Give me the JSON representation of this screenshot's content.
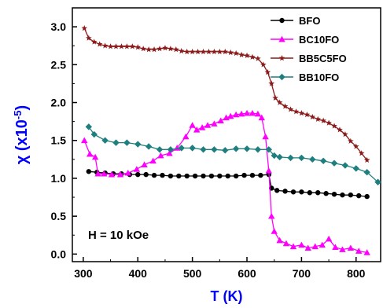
{
  "chart_data": {
    "type": "line",
    "xlabel": "T (K)",
    "ylabel_prefix": "χ (x10",
    "ylabel_exp": "-5",
    "ylabel_suffix": ")",
    "xlim": [
      280,
      845
    ],
    "ylim": [
      -0.1,
      3.25
    ],
    "xticks": [
      300,
      400,
      500,
      600,
      700,
      800
    ],
    "yticks": [
      0.0,
      0.5,
      1.0,
      1.5,
      2.0,
      2.5,
      3.0
    ],
    "xtick_labels": [
      "300",
      "400",
      "500",
      "600",
      "700",
      "800"
    ],
    "ytick_labels": [
      "0.0",
      "0.5",
      "1.0",
      "1.5",
      "2.0",
      "2.5",
      "3.0"
    ],
    "annotation": "H = 10 kOe",
    "legend_position": "top-right",
    "series": [
      {
        "name": "BFO",
        "color": "#000000",
        "marker": "circle",
        "x": [
          310,
          325,
          340,
          355,
          370,
          385,
          400,
          415,
          430,
          445,
          460,
          475,
          490,
          505,
          520,
          535,
          550,
          565,
          580,
          595,
          610,
          625,
          640,
          645,
          655,
          670,
          685,
          700,
          715,
          730,
          745,
          760,
          775,
          790,
          805,
          820
        ],
        "y": [
          1.09,
          1.08,
          1.07,
          1.06,
          1.06,
          1.05,
          1.05,
          1.05,
          1.04,
          1.04,
          1.03,
          1.03,
          1.03,
          1.03,
          1.03,
          1.03,
          1.03,
          1.03,
          1.03,
          1.04,
          1.04,
          1.04,
          1.05,
          0.87,
          0.84,
          0.83,
          0.82,
          0.82,
          0.81,
          0.81,
          0.8,
          0.79,
          0.78,
          0.78,
          0.77,
          0.76
        ]
      },
      {
        "name": "BC10FO",
        "color": "#ff00ff",
        "marker": "triangle",
        "x": [
          302,
          312,
          322,
          327,
          338,
          352,
          368,
          382,
          398,
          412,
          428,
          442,
          458,
          472,
          488,
          500,
          508,
          518,
          528,
          540,
          552,
          562,
          570,
          580,
          590,
          600,
          610,
          620,
          627,
          634,
          640,
          645,
          650,
          660,
          672,
          685,
          700,
          712,
          725,
          738,
          750,
          762,
          775,
          790,
          805,
          820
        ],
        "y": [
          1.5,
          1.32,
          1.28,
          1.06,
          1.06,
          1.05,
          1.05,
          1.07,
          1.12,
          1.18,
          1.23,
          1.3,
          1.33,
          1.4,
          1.55,
          1.7,
          1.64,
          1.67,
          1.7,
          1.72,
          1.76,
          1.8,
          1.82,
          1.84,
          1.85,
          1.86,
          1.86,
          1.85,
          1.8,
          1.55,
          1.1,
          0.5,
          0.3,
          0.18,
          0.14,
          0.1,
          0.12,
          0.08,
          0.1,
          0.12,
          0.2,
          0.09,
          0.06,
          0.08,
          0.04,
          0.02
        ]
      },
      {
        "name": "BB5C5FO",
        "color": "#8b1a1a",
        "marker": "star",
        "x": [
          302,
          310,
          320,
          330,
          340,
          350,
          360,
          370,
          380,
          390,
          400,
          410,
          420,
          430,
          440,
          450,
          460,
          470,
          480,
          490,
          500,
          510,
          520,
          530,
          540,
          550,
          560,
          570,
          580,
          590,
          600,
          610,
          620,
          630,
          638,
          645,
          652,
          660,
          670,
          680,
          690,
          700,
          710,
          720,
          730,
          740,
          750,
          760,
          770,
          780,
          790,
          800,
          810,
          820
        ],
        "y": [
          2.98,
          2.85,
          2.8,
          2.77,
          2.75,
          2.74,
          2.74,
          2.74,
          2.74,
          2.74,
          2.73,
          2.71,
          2.7,
          2.7,
          2.71,
          2.72,
          2.71,
          2.7,
          2.68,
          2.67,
          2.67,
          2.67,
          2.67,
          2.67,
          2.67,
          2.67,
          2.67,
          2.66,
          2.65,
          2.63,
          2.62,
          2.6,
          2.58,
          2.5,
          2.4,
          2.25,
          2.06,
          2.0,
          1.95,
          1.91,
          1.88,
          1.86,
          1.84,
          1.81,
          1.78,
          1.76,
          1.73,
          1.69,
          1.64,
          1.58,
          1.49,
          1.42,
          1.33,
          1.24
        ]
      },
      {
        "name": "BB10FO",
        "color": "#1f7f7f",
        "marker": "diamond",
        "x": [
          310,
          320,
          340,
          360,
          380,
          400,
          420,
          440,
          460,
          480,
          500,
          520,
          540,
          560,
          580,
          600,
          620,
          640,
          650,
          660,
          680,
          700,
          720,
          740,
          760,
          780,
          800,
          820,
          840
        ],
        "y": [
          1.68,
          1.58,
          1.5,
          1.47,
          1.47,
          1.45,
          1.42,
          1.38,
          1.38,
          1.4,
          1.4,
          1.38,
          1.38,
          1.37,
          1.39,
          1.39,
          1.38,
          1.38,
          1.3,
          1.28,
          1.27,
          1.27,
          1.25,
          1.23,
          1.2,
          1.17,
          1.13,
          1.08,
          0.95
        ]
      }
    ]
  }
}
